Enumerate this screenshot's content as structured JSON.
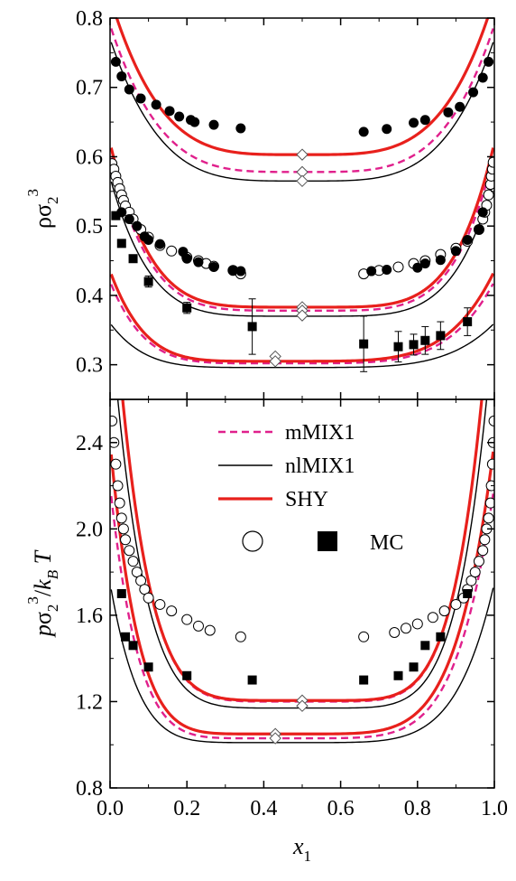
{
  "colors": {
    "shy": "#e8201c",
    "mmix1": "#e0208c",
    "nlmix1": "#000000",
    "mc": "#000000"
  },
  "chart_data": [
    {
      "id": "top",
      "type": "line",
      "xlim": [
        0.0,
        1.0
      ],
      "ylim": [
        0.25,
        0.8
      ],
      "ylabel": "ρσ₂³",
      "yticks": [
        0.3,
        0.4,
        0.5,
        0.6,
        0.7,
        0.8
      ],
      "ytick_labels": [
        "0.3",
        "0.4",
        "0.5",
        "0.6",
        "0.7",
        "0.8"
      ],
      "curve_sets": [
        {
          "min_x": 0.5,
          "min_y": {
            "shy": 0.603,
            "mmix1": 0.578,
            "nlmix1": 0.565
          },
          "edge_y": {
            "shy": 0.83,
            "mmix1": 0.79,
            "nlmix1": 0.77
          },
          "power": 4
        },
        {
          "min_x": 0.5,
          "min_y": {
            "shy": 0.383,
            "mmix1": 0.378,
            "nlmix1": 0.37
          },
          "edge_y": {
            "shy": 0.62,
            "mmix1": 0.605,
            "nlmix1": 0.57
          },
          "power": 5
        },
        {
          "min_x": 0.43,
          "min_y": {
            "shy": 0.305,
            "mmix1": 0.302,
            "nlmix1": 0.296
          },
          "edge_y": {
            "shy": 0.435,
            "mmix1": 0.42,
            "nlmix1": 0.36
          },
          "power": 5
        }
      ],
      "mc_filled_circles": [
        [
          0.015,
          0.737
        ],
        [
          0.03,
          0.716
        ],
        [
          0.05,
          0.697
        ],
        [
          0.08,
          0.684
        ],
        [
          0.12,
          0.675
        ],
        [
          0.155,
          0.666
        ],
        [
          0.18,
          0.658
        ],
        [
          0.21,
          0.653
        ],
        [
          0.22,
          0.65
        ],
        [
          0.27,
          0.646
        ],
        [
          0.34,
          0.641
        ],
        [
          0.66,
          0.636
        ],
        [
          0.72,
          0.64
        ],
        [
          0.79,
          0.649
        ],
        [
          0.82,
          0.653
        ],
        [
          0.88,
          0.664
        ],
        [
          0.91,
          0.672
        ],
        [
          0.945,
          0.693
        ],
        [
          0.97,
          0.714
        ],
        [
          0.985,
          0.737
        ],
        [
          0.03,
          0.52
        ],
        [
          0.05,
          0.51
        ],
        [
          0.07,
          0.5
        ],
        [
          0.09,
          0.485
        ],
        [
          0.1,
          0.48
        ],
        [
          0.13,
          0.474
        ],
        [
          0.19,
          0.463
        ],
        [
          0.2,
          0.453
        ],
        [
          0.23,
          0.448
        ],
        [
          0.27,
          0.441
        ],
        [
          0.32,
          0.436
        ],
        [
          0.34,
          0.435
        ],
        [
          0.68,
          0.435
        ],
        [
          0.72,
          0.437
        ],
        [
          0.8,
          0.44
        ],
        [
          0.82,
          0.446
        ],
        [
          0.86,
          0.451
        ],
        [
          0.9,
          0.464
        ],
        [
          0.93,
          0.48
        ],
        [
          0.96,
          0.495
        ],
        [
          0.97,
          0.52
        ]
      ],
      "mc_open_circles": [
        [
          0.005,
          0.59
        ],
        [
          0.01,
          0.582
        ],
        [
          0.015,
          0.572
        ],
        [
          0.02,
          0.563
        ],
        [
          0.025,
          0.554
        ],
        [
          0.03,
          0.545
        ],
        [
          0.035,
          0.537
        ],
        [
          0.04,
          0.529
        ],
        [
          0.05,
          0.52
        ],
        [
          0.06,
          0.51
        ],
        [
          0.08,
          0.495
        ],
        [
          0.1,
          0.484
        ],
        [
          0.13,
          0.472
        ],
        [
          0.16,
          0.464
        ],
        [
          0.2,
          0.455
        ],
        [
          0.23,
          0.45
        ],
        [
          0.25,
          0.446
        ],
        [
          0.27,
          0.442
        ],
        [
          0.32,
          0.436
        ],
        [
          0.34,
          0.431
        ],
        [
          0.66,
          0.431
        ],
        [
          0.7,
          0.436
        ],
        [
          0.75,
          0.441
        ],
        [
          0.79,
          0.446
        ],
        [
          0.82,
          0.45
        ],
        [
          0.86,
          0.459
        ],
        [
          0.9,
          0.468
        ],
        [
          0.93,
          0.478
        ],
        [
          0.96,
          0.495
        ],
        [
          0.97,
          0.51
        ],
        [
          0.975,
          0.52
        ],
        [
          0.98,
          0.53
        ],
        [
          0.985,
          0.545
        ],
        [
          0.99,
          0.56
        ],
        [
          0.992,
          0.572
        ],
        [
          0.995,
          0.582
        ],
        [
          0.997,
          0.592
        ]
      ],
      "mc_squares": [
        {
          "x": 0.015,
          "y": 0.515,
          "err": 0
        },
        {
          "x": 0.03,
          "y": 0.475,
          "err": 0
        },
        {
          "x": 0.06,
          "y": 0.453,
          "err": 0
        },
        {
          "x": 0.1,
          "y": 0.42,
          "err": 0.008
        },
        {
          "x": 0.2,
          "y": 0.382,
          "err": 0.008
        },
        {
          "x": 0.37,
          "y": 0.355,
          "err": 0.04
        },
        {
          "x": 0.66,
          "y": 0.33,
          "err": 0.04
        },
        {
          "x": 0.75,
          "y": 0.326,
          "err": 0.022
        },
        {
          "x": 0.79,
          "y": 0.329,
          "err": 0.015
        },
        {
          "x": 0.82,
          "y": 0.335,
          "err": 0.02
        },
        {
          "x": 0.86,
          "y": 0.342,
          "err": 0.02
        },
        {
          "x": 0.93,
          "y": 0.362,
          "err": 0.02
        }
      ],
      "diamonds": [
        [
          0.5,
          0.603
        ],
        [
          0.5,
          0.578
        ],
        [
          0.5,
          0.565
        ],
        [
          0.5,
          0.383
        ],
        [
          0.5,
          0.378
        ],
        [
          0.5,
          0.371
        ],
        [
          0.43,
          0.312
        ],
        [
          0.43,
          0.305
        ]
      ]
    },
    {
      "id": "bottom",
      "type": "line",
      "xlim": [
        0.0,
        1.0
      ],
      "ylim": [
        0.8,
        2.6
      ],
      "xlabel": "x₁",
      "ylabel": "pσ₂³/k_B T",
      "xticks": [
        0.0,
        0.2,
        0.4,
        0.6,
        0.8,
        1.0
      ],
      "xtick_labels": [
        "0.0",
        "0.2",
        "0.4",
        "0.6",
        "0.8",
        "1.0"
      ],
      "yticks": [
        0.8,
        1.2,
        1.6,
        2.0,
        2.4
      ],
      "ytick_labels": [
        "0.8",
        "1.2",
        "1.6",
        "2.0",
        "2.4"
      ],
      "curve_sets": [
        {
          "min_x": 0.5,
          "min_y": {
            "shy": 1.205,
            "mmix1": 1.2,
            "nlmix1": 1.17
          },
          "edge_y": {
            "shy": 3.3,
            "mmix1": 3.3,
            "nlmix1": 3.0
          },
          "power": 6
        },
        {
          "min_x": 0.43,
          "min_y": {
            "shy": 1.05,
            "mmix1": 1.03,
            "nlmix1": 1.01
          },
          "edge_y": {
            "shy": 2.4,
            "mmix1": 2.2,
            "nlmix1": 1.75
          },
          "power": 6
        }
      ],
      "mc_open_circles": [
        [
          0.005,
          2.5
        ],
        [
          0.01,
          2.4
        ],
        [
          0.015,
          2.3
        ],
        [
          0.02,
          2.2
        ],
        [
          0.025,
          2.12
        ],
        [
          0.03,
          2.05
        ],
        [
          0.035,
          2.0
        ],
        [
          0.04,
          1.95
        ],
        [
          0.05,
          1.9
        ],
        [
          0.06,
          1.85
        ],
        [
          0.07,
          1.8
        ],
        [
          0.08,
          1.76
        ],
        [
          0.09,
          1.72
        ],
        [
          0.1,
          1.68
        ],
        [
          0.13,
          1.65
        ],
        [
          0.16,
          1.62
        ],
        [
          0.2,
          1.58
        ],
        [
          0.23,
          1.55
        ],
        [
          0.26,
          1.53
        ],
        [
          0.34,
          1.5
        ],
        [
          0.66,
          1.5
        ],
        [
          0.74,
          1.52
        ],
        [
          0.77,
          1.54
        ],
        [
          0.8,
          1.56
        ],
        [
          0.84,
          1.59
        ],
        [
          0.87,
          1.62
        ],
        [
          0.9,
          1.65
        ],
        [
          0.92,
          1.68
        ],
        [
          0.93,
          1.72
        ],
        [
          0.94,
          1.76
        ],
        [
          0.95,
          1.8
        ],
        [
          0.96,
          1.85
        ],
        [
          0.97,
          1.9
        ],
        [
          0.975,
          1.95
        ],
        [
          0.98,
          2.0
        ],
        [
          0.985,
          2.05
        ],
        [
          0.99,
          2.12
        ],
        [
          0.992,
          2.2
        ],
        [
          0.995,
          2.3
        ],
        [
          0.997,
          2.4
        ],
        [
          0.999,
          2.5
        ]
      ],
      "mc_squares": [
        [
          0.03,
          1.7
        ],
        [
          0.04,
          1.5
        ],
        [
          0.06,
          1.46
        ],
        [
          0.1,
          1.36
        ],
        [
          0.2,
          1.32
        ],
        [
          0.37,
          1.3
        ],
        [
          0.66,
          1.3
        ],
        [
          0.75,
          1.32
        ],
        [
          0.79,
          1.36
        ],
        [
          0.82,
          1.46
        ],
        [
          0.86,
          1.5
        ],
        [
          0.93,
          1.7
        ]
      ],
      "diamonds": [
        [
          0.5,
          1.205
        ],
        [
          0.5,
          1.18
        ],
        [
          0.43,
          1.05
        ],
        [
          0.43,
          1.03
        ]
      ],
      "legend": {
        "placement": "upper-center",
        "entries": [
          {
            "label": "mMIX1",
            "style": "mmix1"
          },
          {
            "label": "nlMIX1",
            "style": "nlmix1"
          },
          {
            "label": "SHY",
            "style": "shy"
          }
        ],
        "mc_label": "MC"
      }
    }
  ]
}
